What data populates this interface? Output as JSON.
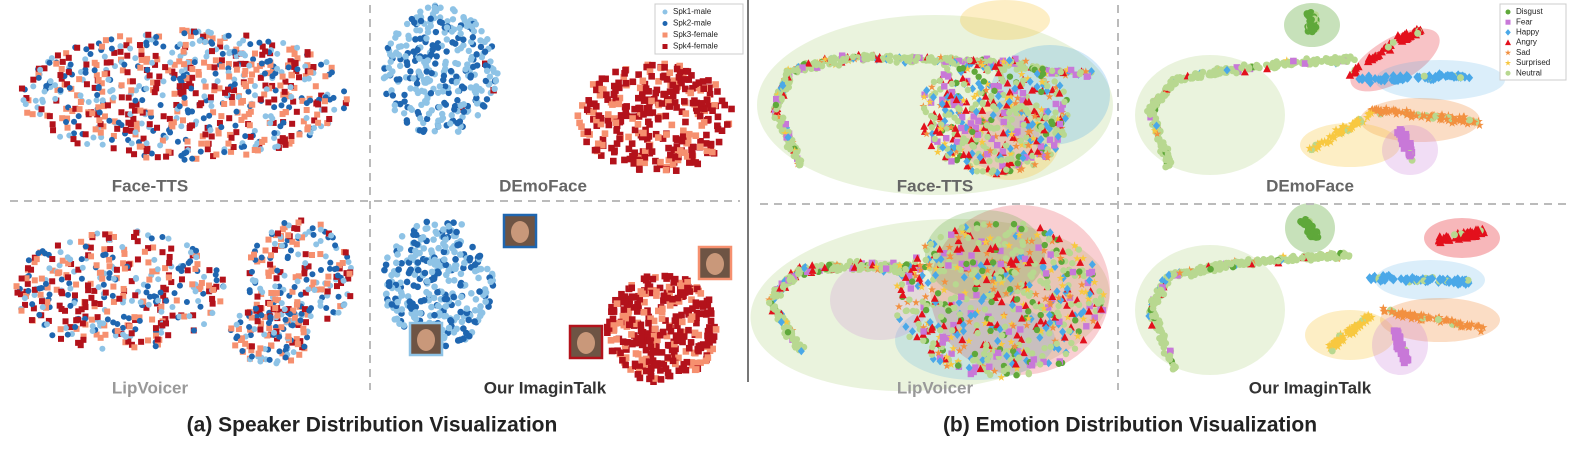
{
  "speaker": {
    "caption": "(a) Speaker Distribution Visualization",
    "legend": [
      {
        "label": "Spk1-male",
        "color": "#8ec3e6",
        "shape": "circle"
      },
      {
        "label": "Spk2-male",
        "color": "#1f66b0",
        "shape": "circle"
      },
      {
        "label": "Spk3-female",
        "color": "#f6906f",
        "shape": "square"
      },
      {
        "label": "Spk4-female",
        "color": "#b3121b",
        "shape": "square"
      }
    ],
    "panels": [
      "Face-TTS",
      "DEmoFace",
      "LipVoicer",
      "Our ImaginTalk"
    ]
  },
  "emotion": {
    "caption": "(b) Emotion Distribution Visualization",
    "legend": [
      {
        "label": "Disgust",
        "color": "#5fa83a",
        "shape": "circle"
      },
      {
        "label": "Fear",
        "color": "#c878d8",
        "shape": "square"
      },
      {
        "label": "Happy",
        "color": "#4aa8e8",
        "shape": "diamond"
      },
      {
        "label": "Angry",
        "color": "#e3101c",
        "shape": "triangle"
      },
      {
        "label": "Sad",
        "color": "#f29040",
        "shape": "star"
      },
      {
        "label": "Surprised",
        "color": "#f8c840",
        "shape": "star"
      },
      {
        "label": "Neutral",
        "color": "#b8d890",
        "shape": "circle"
      }
    ],
    "panels": [
      "Face-TTS",
      "DEmoFace",
      "LipVoicer",
      "Our ImaginTalk"
    ]
  }
}
